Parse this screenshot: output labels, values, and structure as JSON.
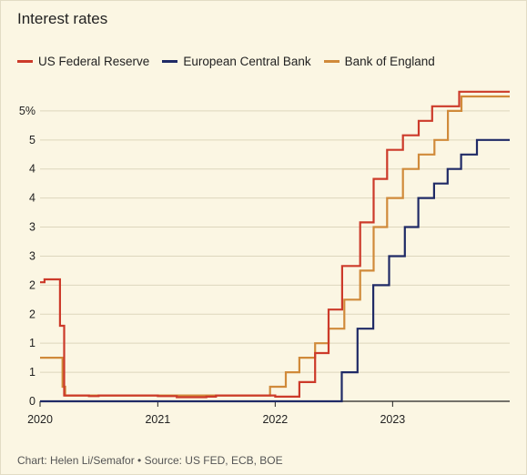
{
  "chart_data": {
    "type": "line",
    "title": "Interest rates",
    "source": "Chart: Helen Li/Semafor • Source: US FED, ECB, BOE",
    "xlabel": "",
    "ylabel": "",
    "x_ticks": [
      "2020",
      "2021",
      "2022",
      "2023"
    ],
    "y_ticks": [
      "0",
      "1",
      "1",
      "2",
      "2",
      "3",
      "3",
      "4",
      "4",
      "5",
      "5%"
    ],
    "y_tick_values": [
      0,
      0.5,
      1,
      1.5,
      2,
      2.5,
      3,
      3.5,
      4,
      4.5,
      5
    ],
    "xlim": [
      "2020-01-01",
      "2023-12-31"
    ],
    "ylim": [
      0,
      5.5
    ],
    "grid": "horizontal",
    "legend_position": "top-left",
    "series": [
      {
        "name": "US Federal Reserve",
        "color": "#cc3a2a",
        "points": [
          [
            "2020-01-01",
            2.05
          ],
          [
            "2020-01-15",
            2.1
          ],
          [
            "2020-03-03",
            1.3
          ],
          [
            "2020-03-16",
            0.1
          ],
          [
            "2020-06-01",
            0.09
          ],
          [
            "2020-07-01",
            0.1
          ],
          [
            "2021-01-01",
            0.09
          ],
          [
            "2021-03-01",
            0.07
          ],
          [
            "2021-06-01",
            0.08
          ],
          [
            "2021-07-01",
            0.1
          ],
          [
            "2022-01-01",
            0.08
          ],
          [
            "2022-03-17",
            0.33
          ],
          [
            "2022-05-05",
            0.83
          ],
          [
            "2022-06-16",
            1.58
          ],
          [
            "2022-07-28",
            2.33
          ],
          [
            "2022-09-22",
            3.08
          ],
          [
            "2022-11-03",
            3.83
          ],
          [
            "2022-12-15",
            4.33
          ],
          [
            "2023-02-02",
            4.58
          ],
          [
            "2023-03-23",
            4.83
          ],
          [
            "2023-05-04",
            5.08
          ],
          [
            "2023-07-27",
            5.33
          ],
          [
            "2023-12-31",
            5.33
          ]
        ]
      },
      {
        "name": "European Central Bank",
        "color": "#1f2a66",
        "points": [
          [
            "2020-01-01",
            0
          ],
          [
            "2022-07-27",
            0
          ],
          [
            "2022-07-27",
            0.5
          ],
          [
            "2022-09-14",
            1.25
          ],
          [
            "2022-11-02",
            2.0
          ],
          [
            "2022-12-21",
            2.5
          ],
          [
            "2023-02-08",
            3.0
          ],
          [
            "2023-03-22",
            3.5
          ],
          [
            "2023-05-10",
            3.75
          ],
          [
            "2023-06-21",
            4.0
          ],
          [
            "2023-08-02",
            4.25
          ],
          [
            "2023-09-20",
            4.5
          ],
          [
            "2023-12-31",
            4.5
          ]
        ]
      },
      {
        "name": "Bank of England",
        "color": "#d08a3a",
        "points": [
          [
            "2020-01-01",
            0.75
          ],
          [
            "2020-03-11",
            0.25
          ],
          [
            "2020-03-19",
            0.1
          ],
          [
            "2021-12-16",
            0.25
          ],
          [
            "2022-02-03",
            0.5
          ],
          [
            "2022-03-17",
            0.75
          ],
          [
            "2022-05-05",
            1.0
          ],
          [
            "2022-06-16",
            1.25
          ],
          [
            "2022-08-04",
            1.75
          ],
          [
            "2022-09-22",
            2.25
          ],
          [
            "2022-11-03",
            3.0
          ],
          [
            "2022-12-15",
            3.5
          ],
          [
            "2023-02-02",
            4.0
          ],
          [
            "2023-03-23",
            4.25
          ],
          [
            "2023-05-11",
            4.5
          ],
          [
            "2023-06-22",
            5.0
          ],
          [
            "2023-08-03",
            5.25
          ],
          [
            "2023-12-31",
            5.25
          ]
        ]
      }
    ]
  }
}
